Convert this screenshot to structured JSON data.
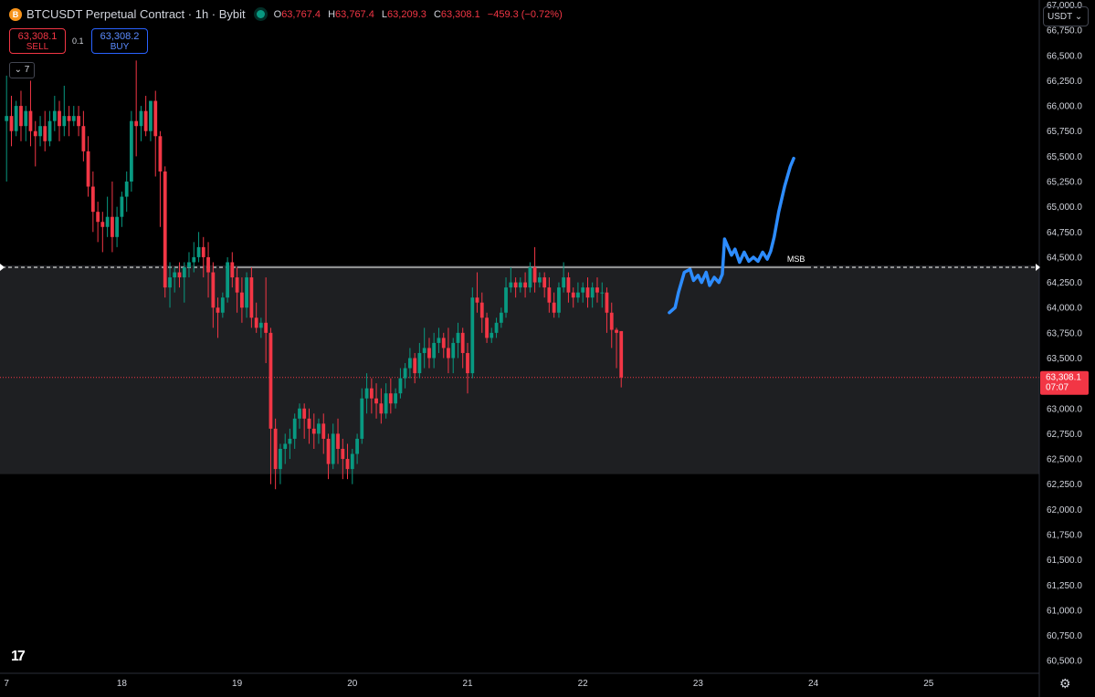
{
  "header": {
    "coin_letter": "B",
    "symbol": "BTCUSDT Perpetual Contract · 1h · Bybit",
    "ohlc": [
      {
        "k": "O",
        "v": "63,767.4"
      },
      {
        "k": "H",
        "v": "63,767.4"
      },
      {
        "k": "L",
        "v": "63,209.3"
      },
      {
        "k": "C",
        "v": "63,308.1"
      }
    ],
    "change": "−459.3 (−0.72%)"
  },
  "trade": {
    "sell_price": "63,308.1",
    "sell_label": "SELL",
    "spread": "0.1",
    "buy_price": "63,308.2",
    "buy_label": "BUY"
  },
  "indicators_toggle": "⌄ 7",
  "currency": "USDT ⌄",
  "logo": "17",
  "colors": {
    "up": "#089981",
    "down": "#f23645",
    "drawing": "#2d8cff",
    "zone": "#1e1f22",
    "bg": "#000000",
    "text": "#d1d4dc"
  },
  "chart_data": {
    "type": "candlestick",
    "instrument": "BTCUSDT",
    "timeframe": "1h",
    "ylim": [
      60375,
      67050
    ],
    "y_ticks": [
      60500,
      60750,
      61000,
      61250,
      61500,
      61750,
      62000,
      62250,
      62500,
      62750,
      63000,
      63250,
      63500,
      63750,
      64000,
      64250,
      64500,
      64750,
      65000,
      65250,
      65500,
      65750,
      66000,
      66250,
      66500,
      66750,
      67000
    ],
    "x_ticks": [
      {
        "label": "7",
        "day": 17
      },
      {
        "label": "18",
        "day": 18
      },
      {
        "label": "19",
        "day": 19
      },
      {
        "label": "20",
        "day": 20
      },
      {
        "label": "21",
        "day": 21
      },
      {
        "label": "22",
        "day": 22
      },
      {
        "label": "23",
        "day": 23
      },
      {
        "label": "24",
        "day": 24
      },
      {
        "label": "25",
        "day": 25
      }
    ],
    "xlim_days": [
      17.0,
      26.0
    ],
    "last_price": {
      "value": 63308.1,
      "label": "63,308.1",
      "countdown": "07:07"
    },
    "zone": {
      "top": 64420,
      "bottom": 62350
    },
    "msb": {
      "level": 64400,
      "label": "MSB",
      "label_day": 23.85
    },
    "projection_path": [
      [
        22.75,
        63950
      ],
      [
        22.8,
        64000
      ],
      [
        22.83,
        64150
      ],
      [
        22.88,
        64350
      ],
      [
        22.93,
        64380
      ],
      [
        22.96,
        64270
      ],
      [
        23.0,
        64320
      ],
      [
        23.03,
        64250
      ],
      [
        23.07,
        64350
      ],
      [
        23.1,
        64220
      ],
      [
        23.14,
        64300
      ],
      [
        23.18,
        64250
      ],
      [
        23.21,
        64330
      ],
      [
        23.23,
        64680
      ],
      [
        23.26,
        64600
      ],
      [
        23.29,
        64520
      ],
      [
        23.32,
        64580
      ],
      [
        23.36,
        64450
      ],
      [
        23.4,
        64550
      ],
      [
        23.44,
        64460
      ],
      [
        23.48,
        64500
      ],
      [
        23.52,
        64460
      ],
      [
        23.56,
        64550
      ],
      [
        23.6,
        64480
      ],
      [
        23.63,
        64560
      ],
      [
        23.66,
        64700
      ],
      [
        23.7,
        64950
      ],
      [
        23.75,
        65200
      ],
      [
        23.8,
        65400
      ],
      [
        23.83,
        65480
      ]
    ],
    "candles": [
      {
        "d": 17.0,
        "o": 65850,
        "h": 66300,
        "c": 65900,
        "l": 65250
      },
      {
        "d": 17.042,
        "o": 65900,
        "h": 66100,
        "c": 65750,
        "l": 65600
      },
      {
        "d": 17.083,
        "o": 65750,
        "h": 66050,
        "c": 66000,
        "l": 65700
      },
      {
        "d": 17.125,
        "o": 66000,
        "h": 66150,
        "c": 65800,
        "l": 65650
      },
      {
        "d": 17.167,
        "o": 65800,
        "h": 66000,
        "c": 65950,
        "l": 65650
      },
      {
        "d": 17.208,
        "o": 65950,
        "h": 66250,
        "c": 65750,
        "l": 65600
      },
      {
        "d": 17.25,
        "o": 65750,
        "h": 65850,
        "c": 65700,
        "l": 65400
      },
      {
        "d": 17.292,
        "o": 65700,
        "h": 65900,
        "c": 65800,
        "l": 65600
      },
      {
        "d": 17.333,
        "o": 65800,
        "h": 65950,
        "c": 65650,
        "l": 65550
      },
      {
        "d": 17.375,
        "o": 65650,
        "h": 65950,
        "c": 65850,
        "l": 65600
      },
      {
        "d": 17.417,
        "o": 65850,
        "h": 66100,
        "c": 65950,
        "l": 65750
      },
      {
        "d": 17.458,
        "o": 65950,
        "h": 66050,
        "c": 65800,
        "l": 65650
      },
      {
        "d": 17.5,
        "o": 65800,
        "h": 66200,
        "c": 65900,
        "l": 65700
      },
      {
        "d": 17.542,
        "o": 65900,
        "h": 66000,
        "c": 65850,
        "l": 65700
      },
      {
        "d": 17.583,
        "o": 65850,
        "h": 66000,
        "c": 65900,
        "l": 65800
      },
      {
        "d": 17.625,
        "o": 65900,
        "h": 66000,
        "c": 65800,
        "l": 65700
      },
      {
        "d": 17.667,
        "o": 65800,
        "h": 65950,
        "c": 65550,
        "l": 65450
      },
      {
        "d": 17.708,
        "o": 65550,
        "h": 65700,
        "c": 65200,
        "l": 65100
      },
      {
        "d": 17.75,
        "o": 65200,
        "h": 65350,
        "c": 64950,
        "l": 64750
      },
      {
        "d": 17.792,
        "o": 64950,
        "h": 65050,
        "c": 64850,
        "l": 64650
      },
      {
        "d": 17.833,
        "o": 64850,
        "h": 64950,
        "c": 64800,
        "l": 64550
      },
      {
        "d": 17.875,
        "o": 64800,
        "h": 65100,
        "c": 64900,
        "l": 64700
      },
      {
        "d": 17.917,
        "o": 64900,
        "h": 65250,
        "c": 64700,
        "l": 64550
      },
      {
        "d": 17.958,
        "o": 64700,
        "h": 65000,
        "c": 64900,
        "l": 64600
      },
      {
        "d": 18.0,
        "o": 64900,
        "h": 65150,
        "c": 65100,
        "l": 64800
      },
      {
        "d": 18.042,
        "o": 65100,
        "h": 65350,
        "c": 65250,
        "l": 64950
      },
      {
        "d": 18.083,
        "o": 65250,
        "h": 65950,
        "c": 65850,
        "l": 65150
      },
      {
        "d": 18.125,
        "o": 65850,
        "h": 66450,
        "c": 65800,
        "l": 65500
      },
      {
        "d": 18.167,
        "o": 65800,
        "h": 66000,
        "c": 65950,
        "l": 65650
      },
      {
        "d": 18.208,
        "o": 65950,
        "h": 66100,
        "c": 65750,
        "l": 65700
      },
      {
        "d": 18.25,
        "o": 65750,
        "h": 66050,
        "c": 66050,
        "l": 65650
      },
      {
        "d": 18.292,
        "o": 66050,
        "h": 66150,
        "c": 65700,
        "l": 65300
      },
      {
        "d": 18.333,
        "o": 65700,
        "h": 65750,
        "c": 65350,
        "l": 64800
      },
      {
        "d": 18.375,
        "o": 65350,
        "h": 65400,
        "c": 64200,
        "l": 64100
      },
      {
        "d": 18.417,
        "o": 64200,
        "h": 64450,
        "c": 64300,
        "l": 64000
      },
      {
        "d": 18.458,
        "o": 64300,
        "h": 64400,
        "c": 64350,
        "l": 64150
      },
      {
        "d": 18.5,
        "o": 64350,
        "h": 64450,
        "c": 64300,
        "l": 64200
      },
      {
        "d": 18.542,
        "o": 64300,
        "h": 64450,
        "c": 64400,
        "l": 64050
      },
      {
        "d": 18.583,
        "o": 64400,
        "h": 64550,
        "c": 64450,
        "l": 64300
      },
      {
        "d": 18.625,
        "o": 64450,
        "h": 64650,
        "c": 64500,
        "l": 64350
      },
      {
        "d": 18.667,
        "o": 64500,
        "h": 64750,
        "c": 64600,
        "l": 64450
      },
      {
        "d": 18.708,
        "o": 64600,
        "h": 64700,
        "c": 64500,
        "l": 64300
      },
      {
        "d": 18.75,
        "o": 64500,
        "h": 64650,
        "c": 64350,
        "l": 64100
      },
      {
        "d": 18.792,
        "o": 64350,
        "h": 64450,
        "c": 64000,
        "l": 63800
      },
      {
        "d": 18.833,
        "o": 64000,
        "h": 64100,
        "c": 63950,
        "l": 63700
      },
      {
        "d": 18.875,
        "o": 63950,
        "h": 64150,
        "c": 64100,
        "l": 63900
      },
      {
        "d": 18.917,
        "o": 64100,
        "h": 64500,
        "c": 64450,
        "l": 64050
      },
      {
        "d": 18.958,
        "o": 64450,
        "h": 64550,
        "c": 64300,
        "l": 64200
      },
      {
        "d": 19.0,
        "o": 64300,
        "h": 64400,
        "c": 64150,
        "l": 63950
      },
      {
        "d": 19.042,
        "o": 64150,
        "h": 64300,
        "c": 64000,
        "l": 63850
      },
      {
        "d": 19.083,
        "o": 64000,
        "h": 64350,
        "c": 64300,
        "l": 63900
      },
      {
        "d": 19.125,
        "o": 64300,
        "h": 64400,
        "c": 63900,
        "l": 63800
      },
      {
        "d": 19.167,
        "o": 63900,
        "h": 64050,
        "c": 63800,
        "l": 63750
      },
      {
        "d": 19.208,
        "o": 63800,
        "h": 63900,
        "c": 63850,
        "l": 63700
      },
      {
        "d": 19.25,
        "o": 63850,
        "h": 64300,
        "c": 63750,
        "l": 63450
      },
      {
        "d": 19.292,
        "o": 63750,
        "h": 63800,
        "c": 62800,
        "l": 62250
      },
      {
        "d": 19.333,
        "o": 62800,
        "h": 62900,
        "c": 62400,
        "l": 62200
      },
      {
        "d": 19.375,
        "o": 62400,
        "h": 62650,
        "c": 62600,
        "l": 62250
      },
      {
        "d": 19.417,
        "o": 62600,
        "h": 62750,
        "c": 62650,
        "l": 62450
      },
      {
        "d": 19.458,
        "o": 62650,
        "h": 62800,
        "c": 62700,
        "l": 62500
      },
      {
        "d": 19.5,
        "o": 62700,
        "h": 62950,
        "c": 62900,
        "l": 62600
      },
      {
        "d": 19.542,
        "o": 62900,
        "h": 63050,
        "c": 63000,
        "l": 62800
      },
      {
        "d": 19.583,
        "o": 63000,
        "h": 63050,
        "c": 62900,
        "l": 62700
      },
      {
        "d": 19.625,
        "o": 62900,
        "h": 63000,
        "c": 62800,
        "l": 62650
      },
      {
        "d": 19.667,
        "o": 62800,
        "h": 62950,
        "c": 62750,
        "l": 62600
      },
      {
        "d": 19.708,
        "o": 62750,
        "h": 62900,
        "c": 62850,
        "l": 62650
      },
      {
        "d": 19.75,
        "o": 62850,
        "h": 62950,
        "c": 62700,
        "l": 62550
      },
      {
        "d": 19.792,
        "o": 62700,
        "h": 62750,
        "c": 62450,
        "l": 62300
      },
      {
        "d": 19.833,
        "o": 62450,
        "h": 62850,
        "c": 62750,
        "l": 62400
      },
      {
        "d": 19.875,
        "o": 62750,
        "h": 62900,
        "c": 62600,
        "l": 62450
      },
      {
        "d": 19.917,
        "o": 62600,
        "h": 62700,
        "c": 62500,
        "l": 62300
      },
      {
        "d": 19.958,
        "o": 62500,
        "h": 62650,
        "c": 62400,
        "l": 62300
      },
      {
        "d": 20.0,
        "o": 62400,
        "h": 62600,
        "c": 62550,
        "l": 62250
      },
      {
        "d": 20.042,
        "o": 62550,
        "h": 62750,
        "c": 62700,
        "l": 62450
      },
      {
        "d": 20.083,
        "o": 62700,
        "h": 63200,
        "c": 63100,
        "l": 62650
      },
      {
        "d": 20.125,
        "o": 63100,
        "h": 63350,
        "c": 63200,
        "l": 62950
      },
      {
        "d": 20.167,
        "o": 63200,
        "h": 63300,
        "c": 63100,
        "l": 62950
      },
      {
        "d": 20.208,
        "o": 63100,
        "h": 63250,
        "c": 63050,
        "l": 62900
      },
      {
        "d": 20.25,
        "o": 63050,
        "h": 63200,
        "c": 62950,
        "l": 62850
      },
      {
        "d": 20.292,
        "o": 62950,
        "h": 63250,
        "c": 63150,
        "l": 62900
      },
      {
        "d": 20.333,
        "o": 63150,
        "h": 63300,
        "c": 63050,
        "l": 62950
      },
      {
        "d": 20.375,
        "o": 63050,
        "h": 63200,
        "c": 63150,
        "l": 63000
      },
      {
        "d": 20.417,
        "o": 63150,
        "h": 63400,
        "c": 63300,
        "l": 63100
      },
      {
        "d": 20.458,
        "o": 63300,
        "h": 63450,
        "c": 63400,
        "l": 63200
      },
      {
        "d": 20.5,
        "o": 63400,
        "h": 63600,
        "c": 63500,
        "l": 63300
      },
      {
        "d": 20.542,
        "o": 63500,
        "h": 63550,
        "c": 63350,
        "l": 63250
      },
      {
        "d": 20.583,
        "o": 63350,
        "h": 63650,
        "c": 63550,
        "l": 63300
      },
      {
        "d": 20.625,
        "o": 63550,
        "h": 63800,
        "c": 63600,
        "l": 63400
      },
      {
        "d": 20.667,
        "o": 63600,
        "h": 63700,
        "c": 63500,
        "l": 63400
      },
      {
        "d": 20.708,
        "o": 63500,
        "h": 63750,
        "c": 63650,
        "l": 63400
      },
      {
        "d": 20.75,
        "o": 63650,
        "h": 63800,
        "c": 63700,
        "l": 63550
      },
      {
        "d": 20.792,
        "o": 63700,
        "h": 63750,
        "c": 63600,
        "l": 63500
      },
      {
        "d": 20.833,
        "o": 63600,
        "h": 63800,
        "c": 63500,
        "l": 63350
      },
      {
        "d": 20.875,
        "o": 63500,
        "h": 63700,
        "c": 63650,
        "l": 63350
      },
      {
        "d": 20.917,
        "o": 63650,
        "h": 63850,
        "c": 63750,
        "l": 63500
      },
      {
        "d": 20.958,
        "o": 63750,
        "h": 63800,
        "c": 63550,
        "l": 63400
      },
      {
        "d": 21.0,
        "o": 63550,
        "h": 63650,
        "c": 63350,
        "l": 63150
      },
      {
        "d": 21.042,
        "o": 63350,
        "h": 64200,
        "c": 64100,
        "l": 63300
      },
      {
        "d": 21.083,
        "o": 64100,
        "h": 64350,
        "c": 64050,
        "l": 63950
      },
      {
        "d": 21.125,
        "o": 64050,
        "h": 64150,
        "c": 63900,
        "l": 63750
      },
      {
        "d": 21.167,
        "o": 63900,
        "h": 63950,
        "c": 63700,
        "l": 63650
      },
      {
        "d": 21.208,
        "o": 63700,
        "h": 63800,
        "c": 63750,
        "l": 63650
      },
      {
        "d": 21.25,
        "o": 63750,
        "h": 63900,
        "c": 63850,
        "l": 63700
      },
      {
        "d": 21.292,
        "o": 63850,
        "h": 64000,
        "c": 63950,
        "l": 63800
      },
      {
        "d": 21.333,
        "o": 63950,
        "h": 64300,
        "c": 64200,
        "l": 63900
      },
      {
        "d": 21.375,
        "o": 64200,
        "h": 64400,
        "c": 64250,
        "l": 64150
      },
      {
        "d": 21.417,
        "o": 64250,
        "h": 64300,
        "c": 64200,
        "l": 64100
      },
      {
        "d": 21.458,
        "o": 64200,
        "h": 64300,
        "c": 64250,
        "l": 64150
      },
      {
        "d": 21.5,
        "o": 64250,
        "h": 64350,
        "c": 64200,
        "l": 64100
      },
      {
        "d": 21.542,
        "o": 64200,
        "h": 64450,
        "c": 64400,
        "l": 64150
      },
      {
        "d": 21.583,
        "o": 64400,
        "h": 64600,
        "c": 64250,
        "l": 64150
      },
      {
        "d": 21.625,
        "o": 64250,
        "h": 64350,
        "c": 64300,
        "l": 64200
      },
      {
        "d": 21.667,
        "o": 64300,
        "h": 64350,
        "c": 64200,
        "l": 64100
      },
      {
        "d": 21.708,
        "o": 64200,
        "h": 64300,
        "c": 64050,
        "l": 63950
      },
      {
        "d": 21.75,
        "o": 64050,
        "h": 64150,
        "c": 63950,
        "l": 63900
      },
      {
        "d": 21.792,
        "o": 63950,
        "h": 64250,
        "c": 64200,
        "l": 63900
      },
      {
        "d": 21.833,
        "o": 64200,
        "h": 64450,
        "c": 64300,
        "l": 64150
      },
      {
        "d": 21.875,
        "o": 64300,
        "h": 64350,
        "c": 64150,
        "l": 64050
      },
      {
        "d": 21.917,
        "o": 64150,
        "h": 64200,
        "c": 64100,
        "l": 64000
      },
      {
        "d": 21.958,
        "o": 64100,
        "h": 64250,
        "c": 64150,
        "l": 64050
      },
      {
        "d": 22.0,
        "o": 64150,
        "h": 64250,
        "c": 64200,
        "l": 64050
      },
      {
        "d": 22.042,
        "o": 64200,
        "h": 64300,
        "c": 64100,
        "l": 64000
      },
      {
        "d": 22.083,
        "o": 64100,
        "h": 64250,
        "c": 64200,
        "l": 64000
      },
      {
        "d": 22.125,
        "o": 64200,
        "h": 64300,
        "c": 64150,
        "l": 64050
      },
      {
        "d": 22.167,
        "o": 64150,
        "h": 64250,
        "c": 64150,
        "l": 64000
      },
      {
        "d": 22.208,
        "o": 64150,
        "h": 64200,
        "c": 63950,
        "l": 63750
      },
      {
        "d": 22.25,
        "o": 63950,
        "h": 64050,
        "c": 63780,
        "l": 63600
      },
      {
        "d": 22.292,
        "o": 63780,
        "h": 63800,
        "c": 63750,
        "l": 63400
      },
      {
        "d": 22.333,
        "o": 63767.4,
        "h": 63767.4,
        "c": 63308.1,
        "l": 63209.3
      }
    ]
  }
}
